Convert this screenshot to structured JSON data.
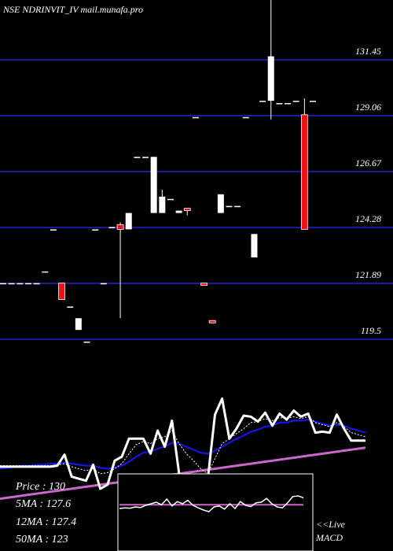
{
  "title": "NSE NDRINVIT_IV mail.munafa.pro",
  "info": {
    "price": "Price   : 130",
    "ma5": "5MA : 127.6",
    "ma12": "12MA : 127.4",
    "ma50": "50MA : 123"
  },
  "live_label": "<<Live",
  "macd_label": "MACD",
  "colors": {
    "background": "#000000",
    "gridline": "#1a1a9a",
    "up_candle": "#ffffff",
    "down_candle": "#ee1111",
    "price_line": "#ffffff",
    "ma_short": "#ffffff",
    "ma_mid": "#1515ff",
    "ma_long": "#cc66cc",
    "macd_line": "#ffffff",
    "macd_signal": "#cc66cc"
  },
  "chart_data": {
    "type": "candlestick",
    "y_ticks": [
      "131.45",
      "129.06",
      "126.67",
      "124.28",
      "121.89",
      "119.5"
    ],
    "y_tick_values": [
      131.45,
      129.06,
      126.67,
      124.28,
      121.89,
      119.5
    ],
    "grid": true,
    "candles": [
      {
        "o": 121.9,
        "h": 121.9,
        "l": 121.9,
        "c": 121.9,
        "up": true
      },
      {
        "o": 121.9,
        "h": 121.9,
        "l": 121.9,
        "c": 121.9,
        "up": true
      },
      {
        "o": 121.9,
        "h": 121.9,
        "l": 121.9,
        "c": 121.9,
        "up": true
      },
      {
        "o": 121.9,
        "h": 121.9,
        "l": 121.9,
        "c": 121.9,
        "up": true
      },
      {
        "o": 121.9,
        "h": 121.9,
        "l": 121.9,
        "c": 121.9,
        "up": true
      },
      {
        "o": 122.4,
        "h": 122.4,
        "l": 122.4,
        "c": 122.4,
        "up": true
      },
      {
        "o": 124.2,
        "h": 124.2,
        "l": 124.2,
        "c": 124.2,
        "up": true
      },
      {
        "o": 121.9,
        "h": 121.9,
        "l": 121.2,
        "c": 121.2,
        "up": false
      },
      {
        "o": 120.9,
        "h": 120.9,
        "l": 120.9,
        "c": 120.9,
        "up": true
      },
      {
        "o": 119.9,
        "h": 120.4,
        "l": 119.9,
        "c": 120.4,
        "up": true
      },
      {
        "o": 119.4,
        "h": 119.4,
        "l": 119.4,
        "c": 119.4,
        "up": true
      },
      {
        "o": 124.2,
        "h": 124.2,
        "l": 124.2,
        "c": 124.2,
        "up": true
      },
      {
        "o": 121.9,
        "h": 121.9,
        "l": 121.9,
        "c": 121.9,
        "up": true
      },
      {
        "o": 124.3,
        "h": 124.3,
        "l": 124.3,
        "c": 124.3,
        "up": true
      },
      {
        "o": 124.4,
        "h": 124.5,
        "l": 120.4,
        "c": 124.2,
        "up": false
      },
      {
        "o": 124.2,
        "h": 124.9,
        "l": 124.2,
        "c": 124.9,
        "up": true
      },
      {
        "o": 127.3,
        "h": 127.3,
        "l": 127.3,
        "c": 127.3,
        "up": true
      },
      {
        "o": 127.3,
        "h": 127.3,
        "l": 127.3,
        "c": 127.3,
        "up": true
      },
      {
        "o": 124.9,
        "h": 127.3,
        "l": 124.9,
        "c": 127.3,
        "up": true
      },
      {
        "o": 124.9,
        "h": 125.9,
        "l": 124.9,
        "c": 125.6,
        "up": true
      },
      {
        "o": 125.5,
        "h": 125.5,
        "l": 125.5,
        "c": 125.5,
        "up": true
      },
      {
        "o": 125.0,
        "h": 125.0,
        "l": 124.9,
        "c": 124.9,
        "up": true
      },
      {
        "o": 125.1,
        "h": 125.1,
        "l": 124.8,
        "c": 125.0,
        "up": false
      },
      {
        "o": 129.0,
        "h": 129.0,
        "l": 129.0,
        "c": 129.0,
        "up": true
      },
      {
        "o": 121.9,
        "h": 121.9,
        "l": 121.9,
        "c": 121.8,
        "up": false
      },
      {
        "o": 120.3,
        "h": 120.3,
        "l": 120.3,
        "c": 120.2,
        "up": false
      },
      {
        "o": 124.9,
        "h": 125.7,
        "l": 124.9,
        "c": 125.7,
        "up": true
      },
      {
        "o": 125.2,
        "h": 125.2,
        "l": 125.2,
        "c": 125.2,
        "up": true
      },
      {
        "o": 125.2,
        "h": 125.2,
        "l": 125.2,
        "c": 125.2,
        "up": true
      },
      {
        "o": 129.0,
        "h": 129.0,
        "l": 129.0,
        "c": 129.0,
        "up": true
      },
      {
        "o": 123.0,
        "h": 124.0,
        "l": 123.0,
        "c": 124.0,
        "up": true
      },
      {
        "o": 129.7,
        "h": 129.7,
        "l": 129.7,
        "c": 129.7,
        "up": true
      },
      {
        "o": 129.7,
        "h": 136.5,
        "l": 128.9,
        "c": 131.6,
        "up": true
      },
      {
        "o": 129.6,
        "h": 129.6,
        "l": 129.6,
        "c": 129.6,
        "up": true
      },
      {
        "o": 129.6,
        "h": 129.6,
        "l": 129.6,
        "c": 129.6,
        "up": true
      },
      {
        "o": 129.7,
        "h": 129.7,
        "l": 129.7,
        "c": 129.7,
        "up": true
      },
      {
        "o": 129.1,
        "h": 129.8,
        "l": 124.2,
        "c": 124.2,
        "up": false
      },
      {
        "o": 129.7,
        "h": 129.7,
        "l": 129.7,
        "c": 129.7,
        "up": true
      }
    ],
    "indicator_panel": {
      "price_line": [
        0.02,
        0.02,
        0.02,
        0.02,
        0.02,
        0.02,
        0.02,
        0.02,
        0.03,
        0.14,
        -0.08,
        -0.1,
        -0.12,
        0.04,
        -0.2,
        -0.16,
        0.08,
        0.12,
        0.3,
        0.3,
        0.3,
        0.15,
        0.38,
        0.22,
        0.48,
        -0.05,
        -0.28,
        -0.28,
        -0.28,
        -0.1,
        0.54,
        0.7,
        0.3,
        0.4,
        0.53,
        0.52,
        0.47,
        0.56,
        0.43,
        0.55,
        0.49,
        0.58,
        0.52,
        0.55,
        0.36,
        0.37,
        0.36,
        0.54,
        0.4,
        0.28,
        0.28,
        0.28
      ],
      "ma_short": [
        0.03,
        0.03,
        0.03,
        0.03,
        0.03,
        0.03,
        0.03,
        0.03,
        0.04,
        0.05,
        0.02,
        0.0,
        -0.02,
        0.0,
        -0.05,
        -0.04,
        0.0,
        0.05,
        0.15,
        0.24,
        0.27,
        0.25,
        0.3,
        0.32,
        0.38,
        0.25,
        0.15,
        0.08,
        0.0,
        -0.05,
        0.1,
        0.25,
        0.3,
        0.35,
        0.4,
        0.46,
        0.47,
        0.5,
        0.48,
        0.51,
        0.5,
        0.52,
        0.5,
        0.52,
        0.46,
        0.44,
        0.42,
        0.46,
        0.42,
        0.36,
        0.34,
        0.32
      ],
      "ma_mid": [
        0.0,
        0.01,
        0.02,
        0.03,
        0.03,
        0.04,
        0.04,
        0.05,
        0.05,
        0.06,
        0.05,
        0.04,
        0.03,
        0.03,
        0.01,
        0.0,
        0.01,
        0.03,
        0.07,
        0.12,
        0.16,
        0.17,
        0.2,
        0.22,
        0.26,
        0.25,
        0.22,
        0.19,
        0.16,
        0.15,
        0.18,
        0.22,
        0.26,
        0.3,
        0.33,
        0.37,
        0.39,
        0.42,
        0.43,
        0.46,
        0.46,
        0.48,
        0.48,
        0.49,
        0.47,
        0.45,
        0.43,
        0.44,
        0.43,
        0.4,
        0.38,
        0.36
      ],
      "ma_long": [
        -0.3,
        -0.29,
        -0.28,
        -0.27,
        -0.26,
        -0.25,
        -0.24,
        -0.23,
        -0.22,
        -0.21,
        -0.2,
        -0.19,
        -0.18,
        -0.17,
        -0.16,
        -0.15,
        -0.14,
        -0.13,
        -0.12,
        -0.11,
        -0.1,
        -0.09,
        -0.08,
        -0.07,
        -0.06,
        -0.05,
        -0.04,
        -0.03,
        -0.02,
        -0.01,
        0.0,
        0.01,
        0.02,
        0.03,
        0.04,
        0.05,
        0.06,
        0.07,
        0.08,
        0.09,
        0.1,
        0.11,
        0.12,
        0.13,
        0.14,
        0.15,
        0.16,
        0.17,
        0.18,
        0.19,
        0.2,
        0.21
      ]
    },
    "macd": {
      "line": [
        0.4,
        0.42,
        0.41,
        0.45,
        0.43,
        0.5,
        0.55,
        0.6,
        0.52,
        0.7,
        0.48,
        0.62,
        0.55,
        0.66,
        0.5,
        0.42,
        0.35,
        0.3,
        0.45,
        0.48,
        0.38,
        0.55,
        0.4,
        0.62,
        0.5,
        0.46,
        0.58,
        0.6,
        0.72,
        0.55,
        0.45,
        0.42,
        0.58,
        0.78,
        0.8,
        0.74
      ],
      "signal": [
        0.52,
        0.52,
        0.52,
        0.52,
        0.52,
        0.52,
        0.52,
        0.52,
        0.52,
        0.52,
        0.52,
        0.52,
        0.52,
        0.52,
        0.52,
        0.52,
        0.52,
        0.52,
        0.52,
        0.52,
        0.52,
        0.52,
        0.52,
        0.52,
        0.52,
        0.52,
        0.52,
        0.52,
        0.52,
        0.52,
        0.52,
        0.52,
        0.52,
        0.52,
        0.52,
        0.52
      ]
    }
  }
}
